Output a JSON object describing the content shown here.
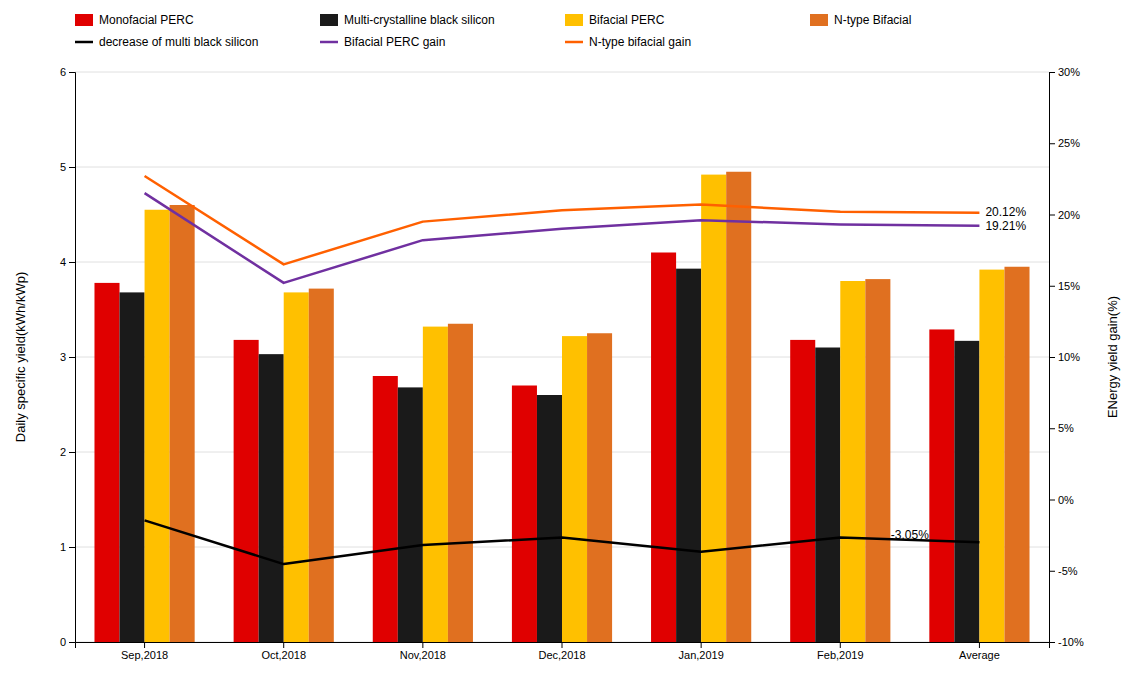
{
  "chart_data": {
    "type": "bar",
    "categories": [
      "Sep,2018",
      "Oct,2018",
      "Nov,2018",
      "Dec,2018",
      "Jan,2019",
      "Feb,2019",
      "Average"
    ],
    "series": [
      {
        "name": "Monofacial PERC",
        "type": "bar",
        "color": "#e00000",
        "values": [
          3.78,
          3.18,
          2.8,
          2.7,
          4.1,
          3.18,
          3.29
        ]
      },
      {
        "name": "Multi-crystalline black silicon",
        "type": "bar",
        "color": "#1a1a1a",
        "values": [
          3.68,
          3.03,
          2.68,
          2.6,
          3.93,
          3.1,
          3.17
        ]
      },
      {
        "name": "Bifacial PERC",
        "type": "bar",
        "color": "#ffc000",
        "values": [
          4.55,
          3.68,
          3.32,
          3.22,
          4.92,
          3.8,
          3.92
        ]
      },
      {
        "name": "N-type Bifacial",
        "type": "bar",
        "color": "#e07020",
        "values": [
          4.6,
          3.72,
          3.35,
          3.25,
          4.95,
          3.82,
          3.95
        ]
      },
      {
        "name": "decrease of multi black silicon",
        "type": "line",
        "color": "#000000",
        "values": [
          1.28,
          0.82,
          1.02,
          1.1,
          0.95,
          1.1,
          1.05
        ]
      },
      {
        "name": "Bifacial PERC gain",
        "type": "line",
        "color": "#7030a0",
        "axis": "y2",
        "values": [
          21.5,
          15.2,
          18.2,
          19.0,
          19.6,
          19.3,
          19.21
        ]
      },
      {
        "name": "N-type bifacial gain",
        "type": "line",
        "color": "#ff6000",
        "axis": "y2",
        "values": [
          22.7,
          16.5,
          19.5,
          20.3,
          20.7,
          20.2,
          20.12
        ]
      }
    ],
    "ylabel": "Daily specific yield(kWh/kWp)",
    "y2label": "ENergy yield gain(%)",
    "ylim": [
      0,
      6
    ],
    "yticks": [
      0,
      1,
      2,
      3,
      4,
      5,
      6
    ],
    "y2lim": [
      -10,
      30
    ],
    "y2ticks": [
      {
        "value": -10,
        "label": "-10%"
      },
      {
        "value": -5,
        "label": "-5%"
      },
      {
        "value": 0,
        "label": "0%"
      },
      {
        "value": 5,
        "label": "5%"
      },
      {
        "value": 10,
        "label": "10%"
      },
      {
        "value": 15,
        "label": "15%"
      },
      {
        "value": 20,
        "label": "20%"
      },
      {
        "value": 25,
        "label": "25%"
      },
      {
        "value": 30,
        "label": "30%"
      }
    ],
    "annotations": [
      {
        "text": "20.12%",
        "x": "Average",
        "y": 20.12,
        "axis": "y2"
      },
      {
        "text": "19.21%",
        "x": "Average",
        "y": 19.21,
        "axis": "y2"
      },
      {
        "text": "-3.05%",
        "x": "Average",
        "y": -3.05,
        "axis": "y2"
      }
    ],
    "grid": true,
    "legend": "upper left"
  }
}
